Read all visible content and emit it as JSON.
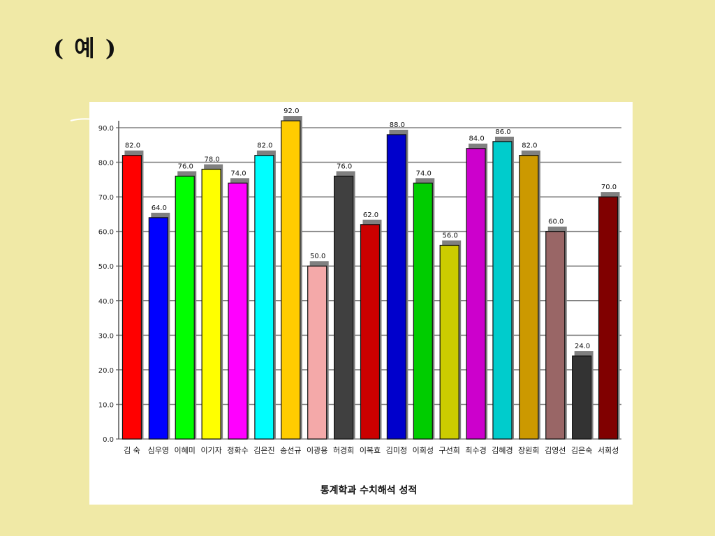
{
  "slide": {
    "title": "( 예 )"
  },
  "colors": {
    "background": "#f0e9a6",
    "panel": "#ffffff",
    "grid": "#808080",
    "bar_shadow": "#808080"
  },
  "chart_data": {
    "type": "bar",
    "title": "",
    "xlabel": "통계학과 수치해석 성적",
    "ylabel": "",
    "ylim": [
      0,
      90
    ],
    "yticks": [
      "0.0",
      "10.0",
      "20.0",
      "30.0",
      "40.0",
      "50.0",
      "60.0",
      "70.0",
      "80.0",
      "90.0"
    ],
    "grid": true,
    "categories": [
      "김 숙",
      "심우영",
      "이혜미",
      "이기자",
      "정화수",
      "김은진",
      "송선규",
      "이광용",
      "허경희",
      "이복효",
      "김미정",
      "이희성",
      "구선희",
      "최수경",
      "김혜경",
      "장원희",
      "김영선",
      "김은숙",
      "서희성"
    ],
    "values": [
      82,
      64,
      76,
      78,
      74,
      82,
      92,
      50,
      76,
      62,
      88,
      74,
      56,
      84,
      86,
      82,
      60,
      24,
      70
    ],
    "data_labels": [
      "82.0",
      "64.0",
      "76.0",
      "78.0",
      "74.0",
      "82.0",
      "92.0",
      "50.0",
      "76.0",
      "62.0",
      "88.0",
      "74.0",
      "56.0",
      "84.0",
      "86.0",
      "82.0",
      "60.0",
      "24.0",
      "70.0"
    ],
    "bar_colors": [
      "#ff0000",
      "#0000ff",
      "#00ff00",
      "#ffff00",
      "#ff00ff",
      "#00ffff",
      "#ffcc00",
      "#f4a9a9",
      "#404040",
      "#cc0000",
      "#0000cc",
      "#00cc00",
      "#cccc00",
      "#cc00cc",
      "#00cccc",
      "#cc9900",
      "#996666",
      "#333333",
      "#800000"
    ]
  }
}
